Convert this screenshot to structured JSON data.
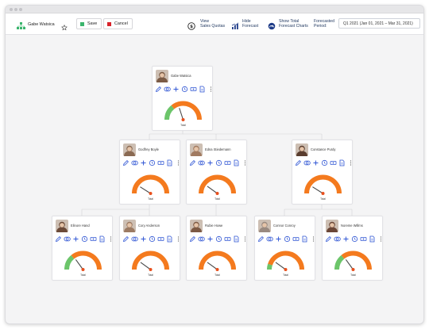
{
  "toolbar": {
    "person_name": "Gabe Watsica",
    "save_label": "Save",
    "cancel_label": "Cancel",
    "view_quotas_line1": "View",
    "view_quotas_line2": "Sales Quotas",
    "hide_forecast_line1": "Hide",
    "hide_forecast_line2": "Forecast",
    "show_total_line1": "Show Total",
    "show_total_line2": "Forecast Charts",
    "period_label_line1": "Forecasted",
    "period_label_line2": "Period:",
    "period_value": "Q1 2021 (Jan 01, 2021 – Mar 31, 2021)"
  },
  "colors": {
    "accent": "#2f55d4",
    "save": "#3bb56d",
    "cancel": "#d8222a",
    "gauge_orange": "#f47a1e",
    "gauge_green": "#6cc56a",
    "needle": "#e84f1c"
  },
  "icon_row": [
    "pencil-icon",
    "coins-icon",
    "plus-icon",
    "clock-icon",
    "money-icon",
    "document-icon",
    "more-icon"
  ],
  "nodes": [
    {
      "name": "Gabe Watsica",
      "gauge_label": "Total",
      "green_fraction": 0.28,
      "needle_fraction": 0.4,
      "avatar": "#7b5b45"
    },
    {
      "name": "Godfrey Boyle",
      "gauge_label": "Total",
      "green_fraction": 0,
      "needle_fraction": 0.18,
      "avatar": "#8a6a52"
    },
    {
      "name": "Edna Stiedemann",
      "gauge_label": "Total",
      "green_fraction": 0,
      "needle_fraction": 0.2,
      "avatar": "#a17a60"
    },
    {
      "name": "Constance Purdy",
      "gauge_label": "Total",
      "green_fraction": 0,
      "needle_fraction": 0.18,
      "avatar": "#5a3d2e"
    },
    {
      "name": "Elinore Hand",
      "gauge_label": "Total",
      "green_fraction": 0.28,
      "needle_fraction": 0.3,
      "avatar": "#6b4a38"
    },
    {
      "name": "Cory Anderson",
      "gauge_label": "Total",
      "green_fraction": 0,
      "needle_fraction": 0.2,
      "avatar": "#9c7a62"
    },
    {
      "name": "Rubie Howe",
      "gauge_label": "Total",
      "green_fraction": 0,
      "needle_fraction": 0.2,
      "avatar": "#7d5a44"
    },
    {
      "name": "Connor Conroy",
      "gauge_label": "Total",
      "green_fraction": 0.1,
      "needle_fraction": 0.2,
      "avatar": "#9a8a80"
    },
    {
      "name": "Noreme Willms",
      "gauge_label": "Total",
      "green_fraction": 0.28,
      "needle_fraction": 0.3,
      "avatar": "#6a4636"
    }
  ]
}
